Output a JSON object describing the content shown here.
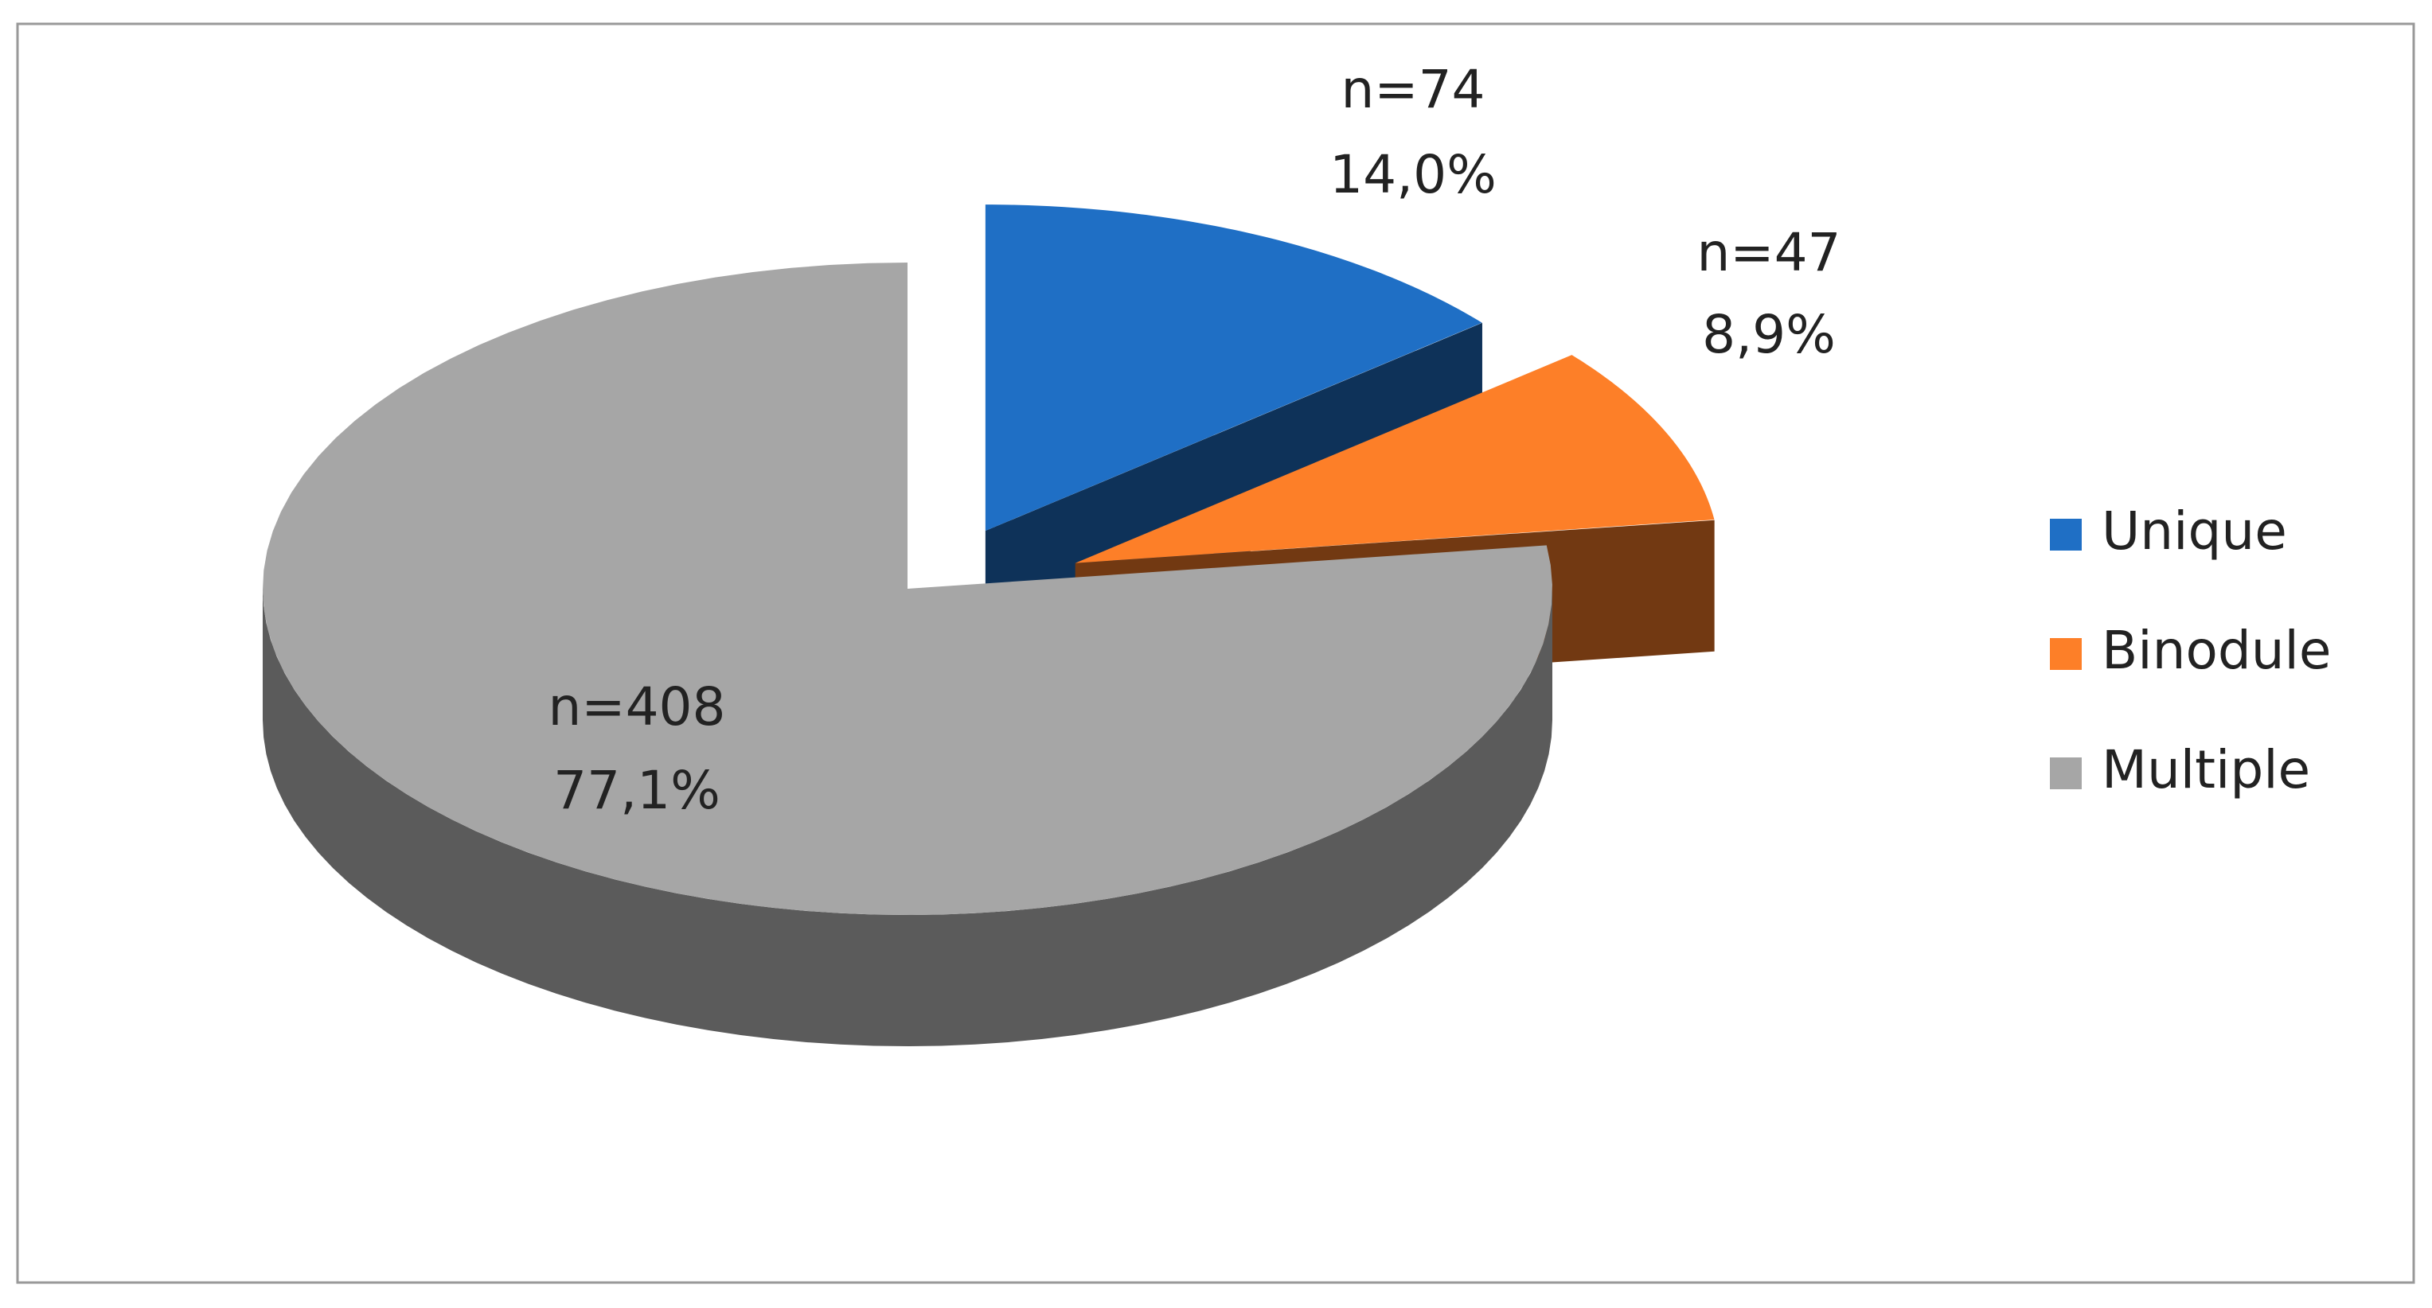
{
  "chart_data": {
    "type": "pie",
    "categories": [
      "Unique",
      "Binodule",
      "Multiple"
    ],
    "values": [
      74,
      47,
      408
    ],
    "value_labels": [
      "n=74",
      "n=47",
      "n=408"
    ],
    "percentages": [
      14.0,
      8.9,
      77.1
    ],
    "percentage_labels": [
      "14,0%",
      "8,9%",
      "77,1%"
    ],
    "colors": [
      "#1f6fc5",
      "#fd7f28",
      "#a6a6a6"
    ],
    "exploded": [
      true,
      true,
      false
    ],
    "legend": "right"
  }
}
